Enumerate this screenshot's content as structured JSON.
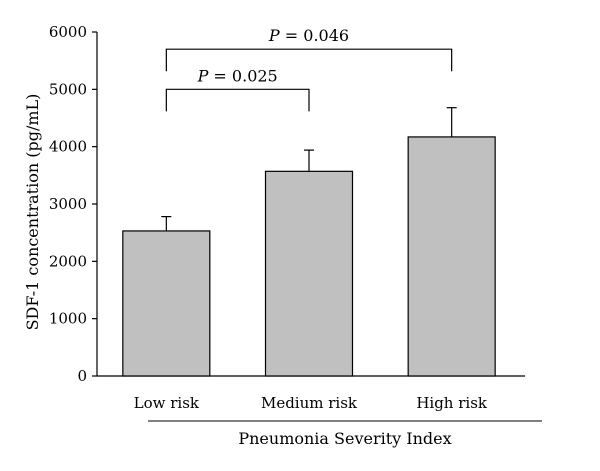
{
  "chart_data": {
    "type": "bar",
    "categories": [
      "Low risk",
      "Medium risk",
      "High risk"
    ],
    "values": [
      2530,
      3570,
      4170
    ],
    "error": [
      250,
      370,
      510
    ],
    "xlabel": "Pneumonia Severity Index",
    "ylabel": "SDF-1 concentration (pg/mL)",
    "ylim": [
      0,
      6000
    ],
    "yticks": [
      "0",
      "1000",
      "2000",
      "3000",
      "4000",
      "5000",
      "6000"
    ],
    "grid": false,
    "bar_color": "#c0c0c0",
    "annotations": [
      {
        "from": "Low risk",
        "to": "Medium risk",
        "p_symbol": "P",
        "p_value": " = 0.025",
        "bracket_y": 5000
      },
      {
        "from": "Low risk",
        "to": "High risk",
        "p_symbol": "P",
        "p_value": " = 0.046",
        "bracket_y": 5700
      }
    ]
  }
}
